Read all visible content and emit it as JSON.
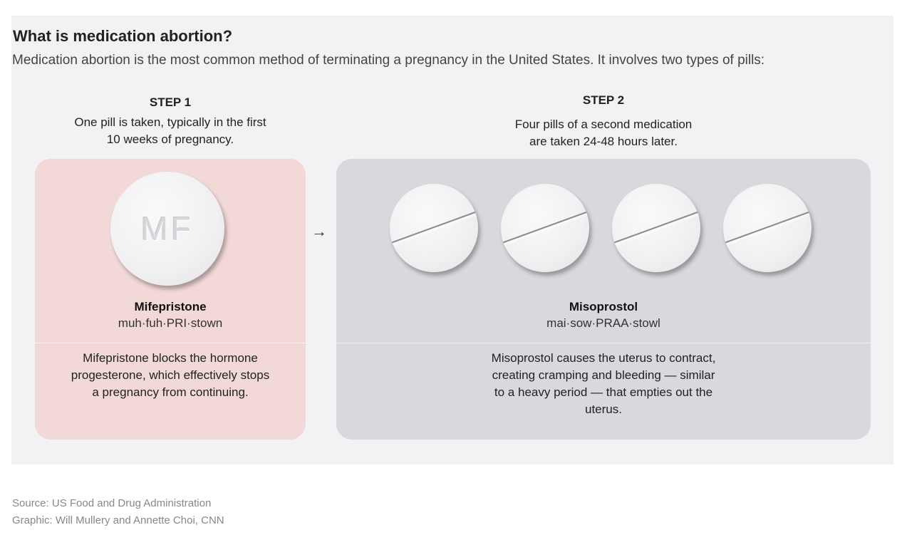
{
  "title": "What is medication abortion?",
  "subtitle": "Medication abortion is the most common method of terminating a pregnancy in the United States. It involves two types of pills:",
  "step1": {
    "label": "STEP 1",
    "text_line1": "One pill is taken, typically in the first",
    "text_line2": "10 weeks of pregnancy.",
    "pill_marking": "MF",
    "drug": "Mifepristone",
    "pronunciation": "muh·fuh·PRI·stown",
    "desc_lines": [
      "Mifepristone blocks the hormone",
      "progesterone, which effectively stops",
      "a pregnancy from continuing."
    ]
  },
  "arrow": "→",
  "step2": {
    "label": "STEP 2",
    "text_line1": "Four pills of a second medication",
    "text_line2": "are taken 24-48 hours later.",
    "pill_count": 4,
    "drug": "Misoprostol",
    "pronunciation": "mai·sow·PRAA·stowl",
    "desc_lines": [
      "Misoprostol causes the uterus to contract,",
      "creating cramping and bleeding — similar",
      "to a heavy period — that empties out the",
      "uterus."
    ]
  },
  "source": "Source: US Food and Drug Administration",
  "credit": "Graphic: Will Mullery and Annette Choi, CNN",
  "colors": {
    "panel": "#f2f2f4",
    "step1_card": "#f3d8d8",
    "step2_card": "#d9d8dc"
  }
}
